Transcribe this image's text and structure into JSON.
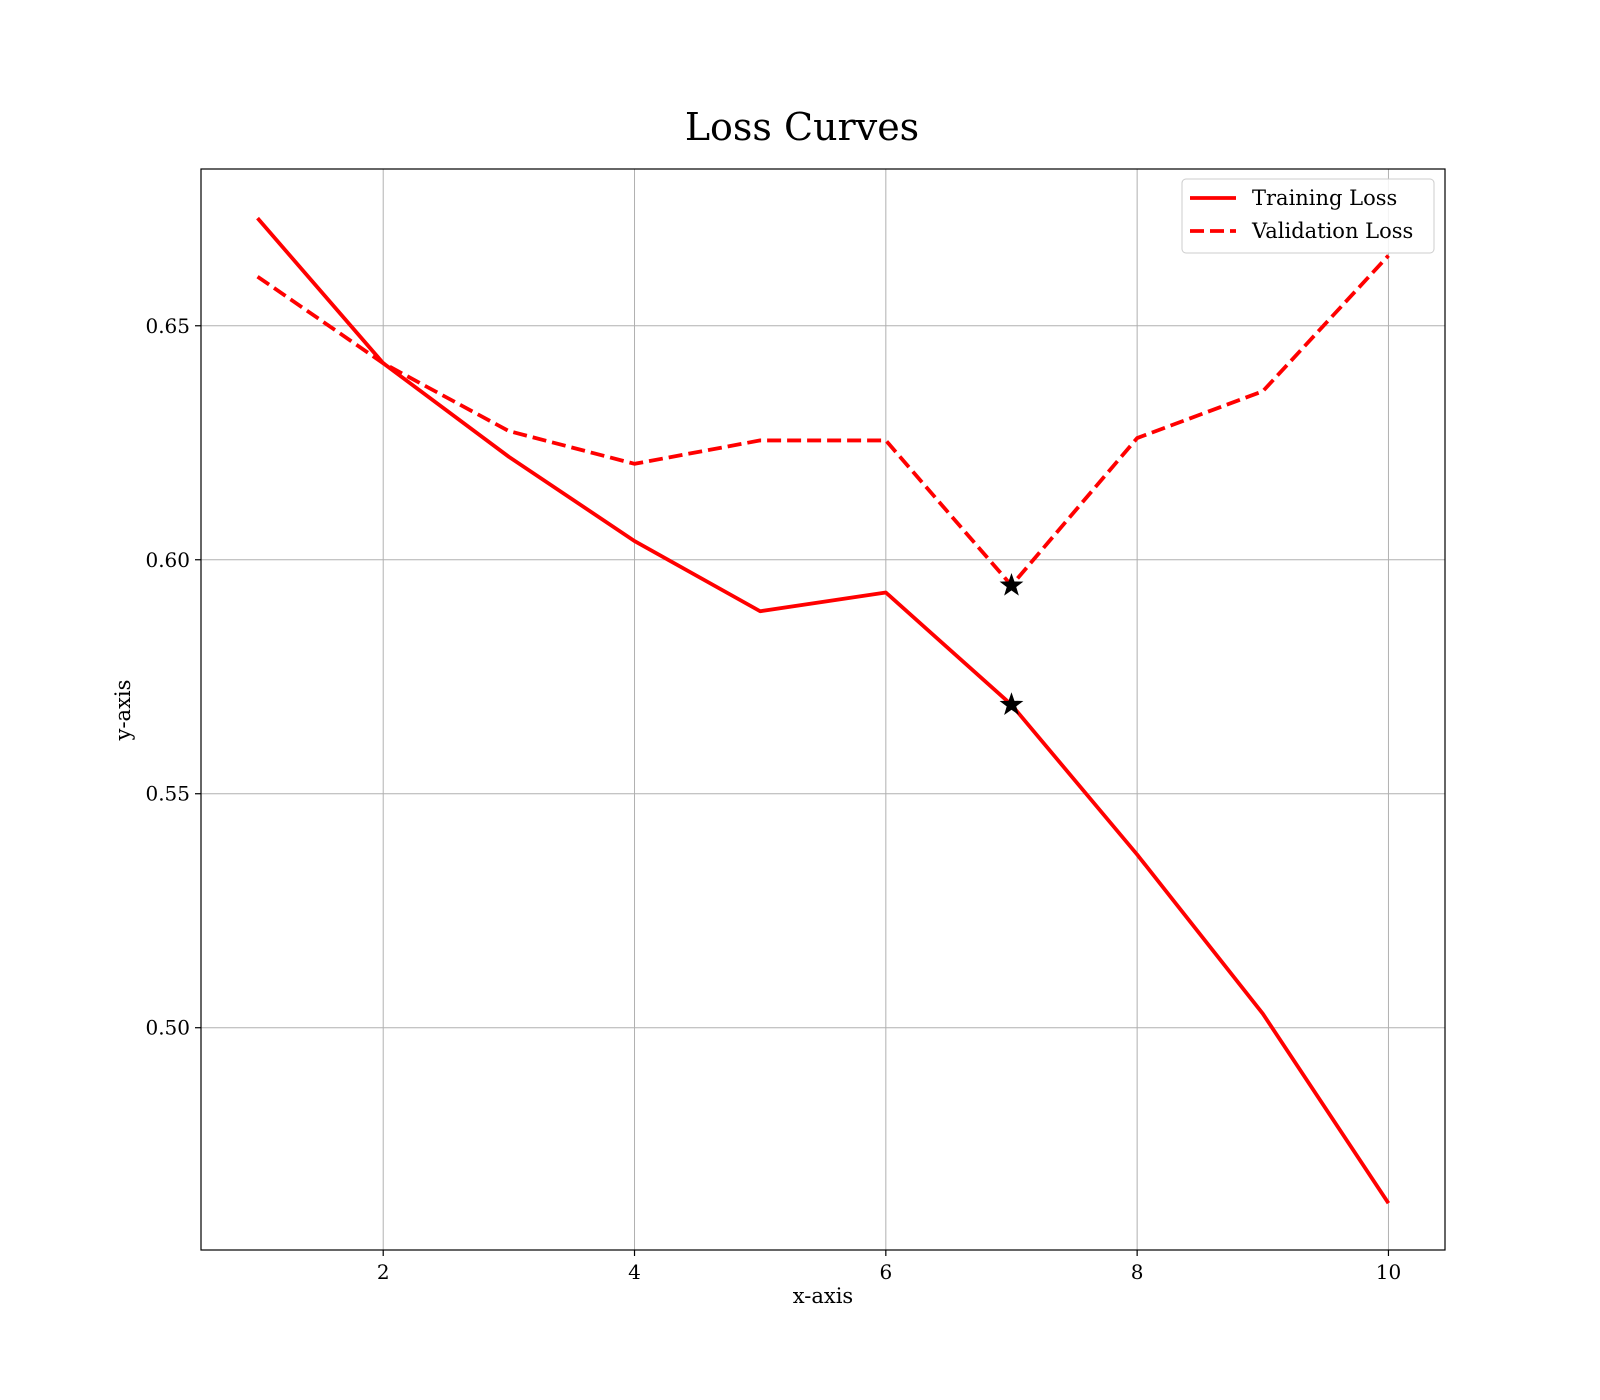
{
  "chart_data": {
    "type": "line",
    "title": "Loss Curves",
    "xlabel": "x-axis",
    "ylabel": "y-axis",
    "xlim": [
      0.55,
      10.45
    ],
    "ylim": [
      0.4525,
      0.6835
    ],
    "xticks": [
      2,
      4,
      6,
      8,
      10
    ],
    "yticks": [
      0.5,
      0.55,
      0.6,
      0.65
    ],
    "ytick_labels": [
      "0.50",
      "0.55",
      "0.60",
      "0.65"
    ],
    "grid": true,
    "legend_position": "top-right",
    "x": [
      1,
      2,
      3,
      4,
      5,
      6,
      7,
      8,
      9,
      10
    ],
    "series": [
      {
        "name": "Training Loss",
        "color": "#ff0000",
        "linestyle": "solid",
        "values": [
          0.673,
          0.642,
          0.622,
          0.604,
          0.589,
          0.593,
          0.569,
          0.537,
          0.503,
          0.4625
        ]
      },
      {
        "name": "Validation Loss",
        "color": "#ff0000",
        "linestyle": "dashed",
        "values": [
          0.6605,
          0.642,
          0.6275,
          0.6205,
          0.6255,
          0.6255,
          0.5945,
          0.626,
          0.636,
          0.665
        ]
      }
    ],
    "markers": [
      {
        "series": "Training Loss",
        "x": 7,
        "y": 0.569,
        "shape": "star",
        "color": "#000000"
      },
      {
        "series": "Validation Loss",
        "x": 7,
        "y": 0.5945,
        "shape": "star",
        "color": "#000000"
      }
    ]
  }
}
